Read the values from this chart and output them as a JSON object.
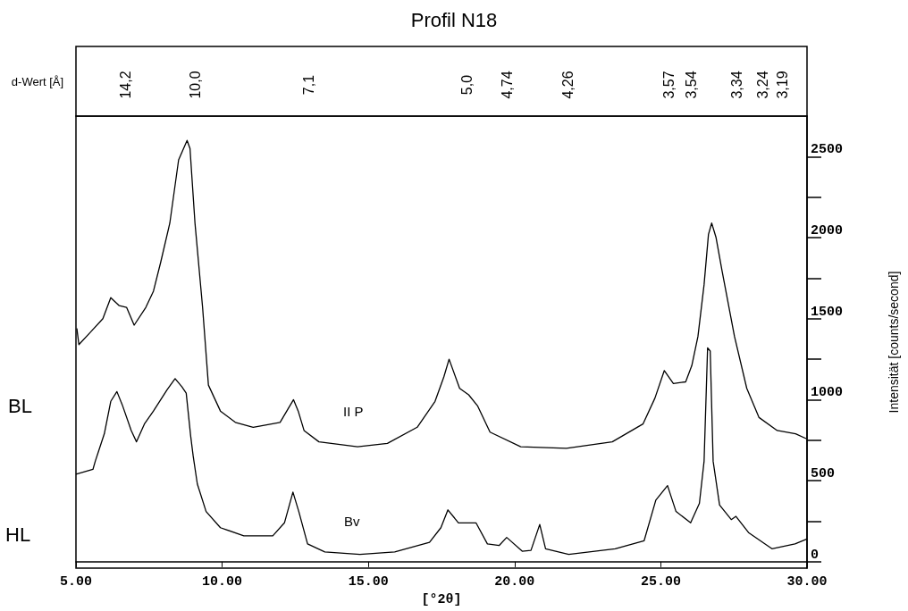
{
  "chart_data": {
    "type": "line",
    "title": "Profil N18",
    "xlabel": "[°2θ]",
    "ylabel": "Intensität [counts/second]",
    "annotations": [
      "BL",
      "HL",
      "d-Wert [Å]",
      "14,2",
      "10,0",
      "7,1",
      "5,0",
      "4,74",
      "4,26",
      "3,57",
      "3,54",
      "3,34",
      "3,24",
      "3,19"
    ],
    "xlim": [
      5,
      30
    ],
    "xticks": [
      {
        "value": 5,
        "label": "5.00"
      },
      {
        "value": 10,
        "label": "10.00"
      },
      {
        "value": 15,
        "label": "15.00"
      },
      {
        "value": 20,
        "label": "20.00"
      },
      {
        "value": 25,
        "label": "25.00"
      },
      {
        "value": 30,
        "label": "30.00"
      }
    ],
    "ylim": [
      -40,
      2750
    ],
    "yticks": [
      0,
      {
        "value": 250,
        "label": null
      },
      500,
      {
        "value": 750,
        "label": null
      },
      1000,
      {
        "value": 1250,
        "label": null
      },
      1500,
      {
        "value": 1750,
        "label": null
      },
      2000,
      {
        "value": 2250,
        "label": null
      },
      2500
    ],
    "marker": "none",
    "series": [
      {
        "name": "II P",
        "color": "#000000",
        "x": [
          5.03,
          5.1,
          5.46,
          5.92,
          6.19,
          6.48,
          6.73,
          6.99,
          7.39,
          7.65,
          7.9,
          8.21,
          8.51,
          8.8,
          8.9,
          9.07,
          9.33,
          9.53,
          9.94,
          10.45,
          11.06,
          11.98,
          12.44,
          12.6,
          12.8,
          13.31,
          14.63,
          15.65,
          16.67,
          17.28,
          17.58,
          17.76,
          18.12,
          18.43,
          18.74,
          19.16,
          20.21,
          21.77,
          23.34,
          24.39,
          24.8,
          25.12,
          25.43,
          25.85,
          26.06,
          26.27,
          26.48,
          26.63,
          26.74,
          26.89,
          27.1,
          27.52,
          27.94,
          28.36,
          28.98,
          29.61,
          29.97
        ],
        "values": [
          1440,
          1340,
          1410,
          1500,
          1630,
          1580,
          1570,
          1460,
          1570,
          1670,
          1850,
          2090,
          2480,
          2600,
          2550,
          2090,
          1570,
          1090,
          930,
          860,
          830,
          860,
          1000,
          930,
          810,
          740,
          710,
          730,
          830,
          990,
          1140,
          1250,
          1070,
          1030,
          960,
          800,
          710,
          700,
          740,
          850,
          1010,
          1180,
          1100,
          1110,
          1210,
          1390,
          1710,
          2020,
          2090,
          2000,
          1790,
          1390,
          1070,
          890,
          810,
          790,
          760
        ]
      },
      {
        "name": "Bv",
        "color": "#000000",
        "x": [
          5.0,
          5.58,
          5.66,
          5.97,
          6.19,
          6.4,
          6.58,
          6.89,
          7.07,
          7.34,
          7.65,
          8.11,
          8.39,
          8.62,
          8.77,
          8.92,
          9.01,
          9.15,
          9.45,
          9.94,
          10.74,
          11.73,
          12.13,
          12.42,
          12.62,
          12.92,
          13.51,
          14.71,
          15.9,
          17.09,
          17.48,
          17.72,
          18.08,
          18.68,
          19.07,
          19.47,
          19.73,
          20.26,
          20.56,
          20.86,
          21.06,
          21.85,
          23.44,
          24.43,
          24.83,
          25.23,
          25.52,
          26.02,
          26.32,
          26.48,
          26.6,
          26.69,
          26.79,
          27.01,
          27.41,
          27.57,
          28.0,
          28.8,
          29.59,
          30.0
        ],
        "values": [
          540,
          570,
          620,
          790,
          990,
          1050,
          970,
          810,
          740,
          850,
          930,
          1060,
          1130,
          1080,
          1040,
          780,
          650,
          480,
          310,
          210,
          160,
          160,
          240,
          430,
          310,
          110,
          60,
          45,
          60,
          120,
          210,
          320,
          240,
          240,
          110,
          100,
          150,
          65,
          70,
          230,
          80,
          45,
          80,
          130,
          380,
          470,
          310,
          240,
          360,
          620,
          1320,
          1300,
          620,
          350,
          260,
          280,
          180,
          80,
          110,
          140
        ]
      }
    ]
  }
}
